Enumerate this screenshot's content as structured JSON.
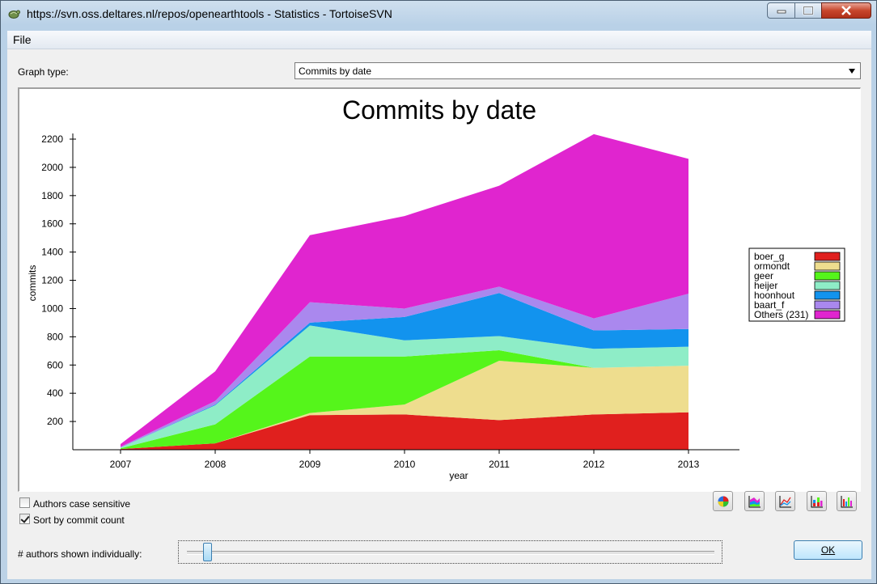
{
  "window": {
    "title": "https://svn.oss.deltares.nl/repos/openearthtools - Statistics - TortoiseSVN",
    "controls": [
      "minimize-icon",
      "maximize-icon",
      "close-icon"
    ]
  },
  "menu": {
    "file": "File"
  },
  "graph_type": {
    "label": "Graph type:",
    "selected": "Commits by date"
  },
  "chart_data": {
    "type": "area",
    "stacked": true,
    "title": "Commits by date",
    "xlabel": "year",
    "ylabel": "commits",
    "x": [
      "2007",
      "2008",
      "2009",
      "2010",
      "2011",
      "2012",
      "2013"
    ],
    "yticks": [
      200,
      400,
      600,
      800,
      1000,
      1200,
      1400,
      1600,
      1800,
      2000,
      2200
    ],
    "ylim": [
      0,
      2200
    ],
    "legend_position": "right",
    "series": [
      {
        "name": "boer_g",
        "color": "#e0201e",
        "values": [
          5,
          45,
          245,
          250,
          210,
          250,
          265
        ]
      },
      {
        "name": "ormondt",
        "color": "#eedd8e",
        "values": [
          0,
          0,
          15,
          70,
          420,
          330,
          330
        ]
      },
      {
        "name": "geer",
        "color": "#55f51b",
        "values": [
          5,
          135,
          400,
          340,
          75,
          0,
          0
        ]
      },
      {
        "name": "heijer",
        "color": "#8eedc7",
        "values": [
          5,
          135,
          220,
          115,
          100,
          135,
          135
        ]
      },
      {
        "name": "hoonhout",
        "color": "#1293ee",
        "values": [
          0,
          5,
          20,
          165,
          305,
          130,
          125
        ]
      },
      {
        "name": "baart_f",
        "color": "#aa88ee",
        "values": [
          5,
          25,
          145,
          60,
          45,
          85,
          250
        ]
      },
      {
        "name": "Others (231)",
        "color": "#e025cf",
        "values": [
          20,
          210,
          475,
          655,
          715,
          1305,
          955
        ]
      }
    ]
  },
  "options": {
    "authors_case_sensitive": {
      "label": "Authors case sensitive",
      "checked": false
    },
    "sort_by_commit_count": {
      "label": "Sort by commit count",
      "checked": true
    }
  },
  "graph_buttons": [
    "pie-chart-icon",
    "stacked-area-chart-icon",
    "line-chart-icon",
    "stacked-bar-chart-icon",
    "bar-chart-icon"
  ],
  "authors_shown": {
    "label": "# authors shown individually:",
    "slider_fraction": 0.03
  },
  "ok_button": "OK"
}
